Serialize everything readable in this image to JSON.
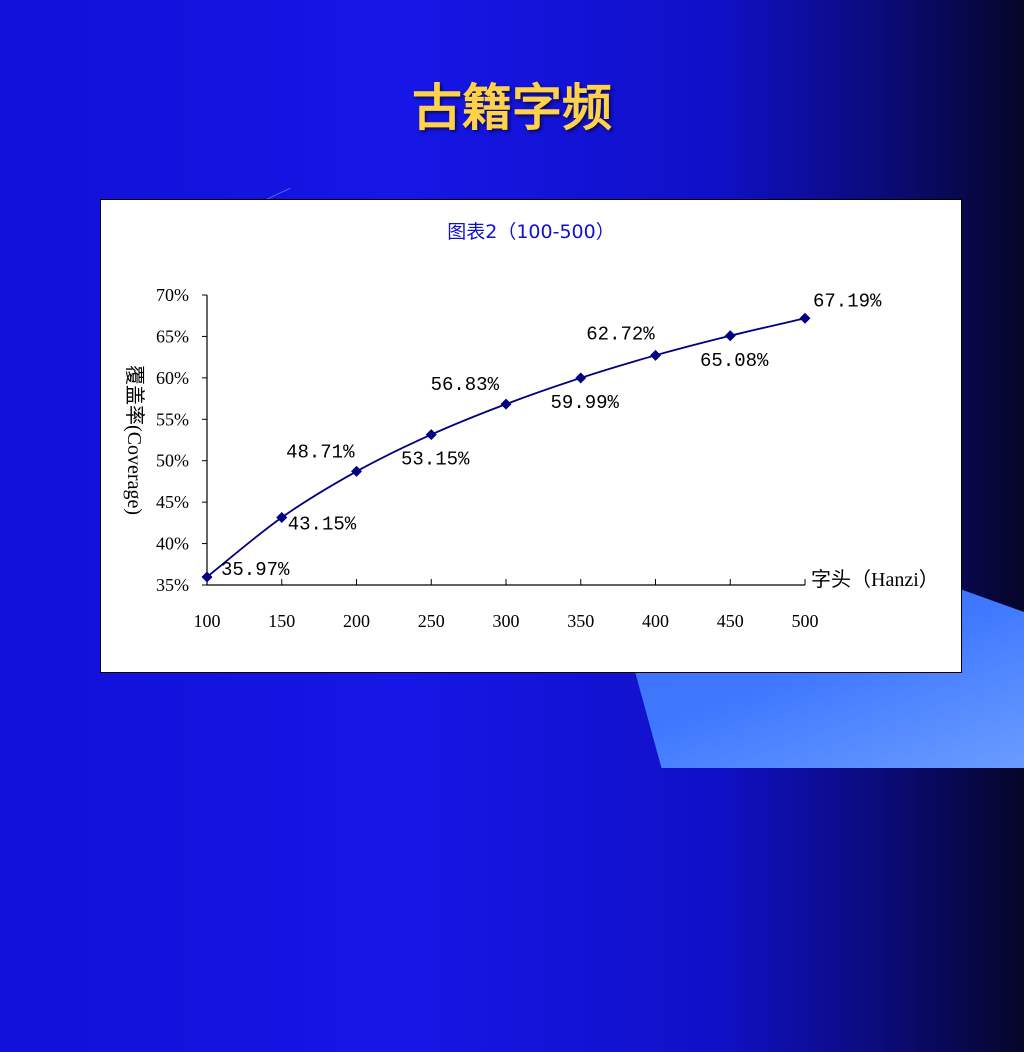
{
  "slide": {
    "title": "古籍字频"
  },
  "chart_data": {
    "type": "line",
    "title": "图表2（100-500）",
    "xlabel": "字头（Hanzi）",
    "ylabel": "覆盖率(Coverage)",
    "x": [
      100,
      150,
      200,
      250,
      300,
      350,
      400,
      450,
      500
    ],
    "series": [
      {
        "values": [
          35.97,
          43.15,
          48.71,
          53.15,
          56.83,
          59.99,
          62.72,
          65.08,
          67.19
        ],
        "labels": [
          "35.97%",
          "43.15%",
          "48.71%",
          "53.15%",
          "56.83%",
          "59.99%",
          "62.72%",
          "65.08%",
          "67.19%"
        ]
      }
    ],
    "xlim": [
      100,
      500
    ],
    "ylim": [
      35,
      70
    ],
    "xticks": [
      "100",
      "150",
      "200",
      "250",
      "300",
      "350",
      "400",
      "450",
      "500"
    ],
    "yticks": [
      "35%",
      "40%",
      "45%",
      "50%",
      "55%",
      "60%",
      "65%",
      "70%"
    ],
    "grid": false,
    "legend": "none",
    "colors": {
      "line": "#000080",
      "marker": "#000080",
      "title": "#1010d0"
    }
  }
}
